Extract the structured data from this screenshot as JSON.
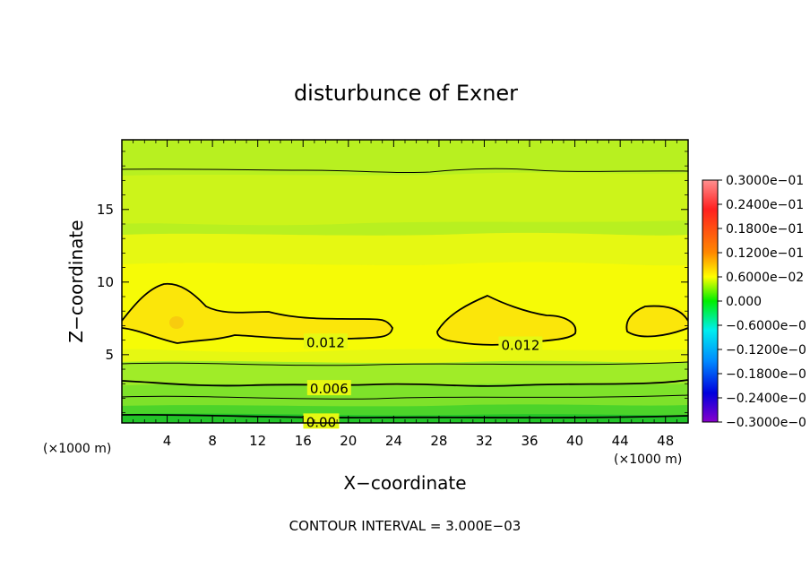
{
  "chart_data": {
    "type": "heatmap",
    "title": "disturbunce of Exner",
    "xlabel": "X−coordinate",
    "ylabel": "Z−coordinate",
    "x_unit_left": "(×1000 m)",
    "x_unit_right": "(×1000 m)",
    "xlim": [
      0,
      50
    ],
    "ylim": [
      0.3,
      19.8
    ],
    "x_ticks": [
      4,
      8,
      12,
      16,
      20,
      24,
      28,
      32,
      36,
      40,
      44,
      48
    ],
    "y_ticks": [
      5,
      10,
      15
    ],
    "x_tick_labels": [
      "4",
      "8",
      "12",
      "16",
      "20",
      "24",
      "28",
      "32",
      "36",
      "40",
      "44",
      "48"
    ],
    "y_tick_labels": [
      "5",
      "10",
      "15"
    ],
    "contour_interval_text": "CONTOUR INTERVAL = 3.000E−03",
    "colorbar": {
      "min": -0.03,
      "max": 0.03,
      "labels": [
        "0.3000e−01",
        "0.2400e−01",
        "0.1800e−01",
        "0.1200e−01",
        "0.6000e−02",
        "0.000",
        "−0.6000e−0",
        "−0.1200e−0",
        "−0.1800e−0",
        "−0.2400e−0",
        "−0.3000e−0"
      ]
    },
    "contour_labels": [
      {
        "text": "0.012",
        "x": 18.0,
        "z": 5.9
      },
      {
        "text": "0.012",
        "x": 35.2,
        "z": 5.7
      },
      {
        "text": "0.006",
        "x": 18.3,
        "z": 2.7
      },
      {
        "text": "0.00",
        "x": 17.6,
        "z": 0.4
      }
    ]
  }
}
